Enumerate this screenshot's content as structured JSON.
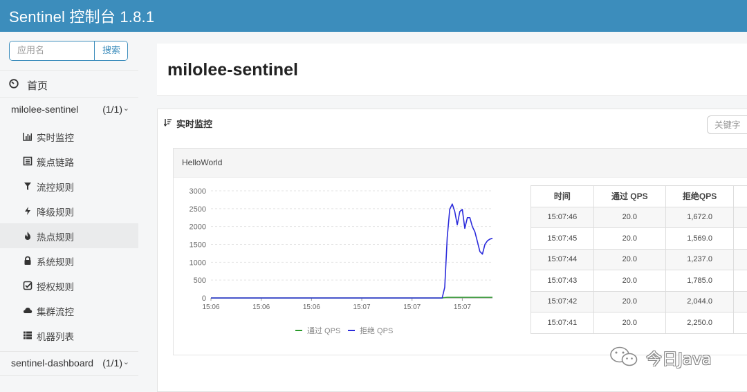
{
  "header": {
    "title": "Sentinel 控制台 1.8.1"
  },
  "sidebar": {
    "search": {
      "placeholder": "应用名",
      "button_label": "搜索"
    },
    "home_label": "首页",
    "apps": [
      {
        "name": "milolee-sentinel",
        "count": "(1/1)"
      },
      {
        "name": "sentinel-dashboard",
        "count": "(1/1)"
      }
    ],
    "items": [
      {
        "label": "实时监控",
        "icon": "bar-chart-icon"
      },
      {
        "label": "簇点链路",
        "icon": "list-icon"
      },
      {
        "label": "流控规则",
        "icon": "filter-icon"
      },
      {
        "label": "降级规则",
        "icon": "bolt-icon"
      },
      {
        "label": "热点规则",
        "icon": "fire-icon"
      },
      {
        "label": "系统规则",
        "icon": "lock-icon"
      },
      {
        "label": "授权规则",
        "icon": "check-square-icon"
      },
      {
        "label": "集群流控",
        "icon": "cloud-icon"
      },
      {
        "label": "机器列表",
        "icon": "th-list-icon"
      }
    ]
  },
  "main": {
    "page_title": "milolee-sentinel",
    "panel": {
      "title": "实时监控",
      "keyword_placeholder": "关键字"
    },
    "resource": {
      "name": "HelloWorld",
      "table": {
        "headers": [
          "时间",
          "通过 QPS",
          "拒绝QPS",
          ""
        ],
        "rows": [
          [
            "15:07:46",
            "20.0",
            "1,672.0"
          ],
          [
            "15:07:45",
            "20.0",
            "1,569.0"
          ],
          [
            "15:07:44",
            "20.0",
            "1,237.0"
          ],
          [
            "15:07:43",
            "20.0",
            "1,785.0"
          ],
          [
            "15:07:42",
            "20.0",
            "2,044.0"
          ],
          [
            "15:07:41",
            "20.0",
            "2,250.0"
          ]
        ]
      }
    }
  },
  "chart_data": {
    "type": "line",
    "x_ticks": [
      "15:06",
      "15:06",
      "15:06",
      "15:07",
      "15:07",
      "15:07"
    ],
    "y_ticks": [
      "3000",
      "2500",
      "2000",
      "1500",
      "1000",
      "500",
      "0"
    ],
    "ylim": [
      0,
      3000
    ],
    "xlim": [
      0,
      5.6
    ],
    "grid": true,
    "legend_position": "bottom",
    "colors": {
      "pass": "#2a9a2a",
      "block": "#2b2bdb"
    },
    "series": [
      {
        "name": "通过 QPS",
        "x": [
          0,
          4.6,
          4.7,
          5.6
        ],
        "y": [
          0,
          0,
          20,
          20
        ]
      },
      {
        "name": "拒绝 QPS",
        "x": [
          0,
          4.6,
          4.65,
          4.7,
          4.75,
          4.8,
          4.85,
          4.9,
          4.95,
          5.0,
          5.05,
          5.1,
          5.15,
          5.2,
          5.25,
          5.3,
          5.35,
          5.4,
          5.45,
          5.5,
          5.55,
          5.6
        ],
        "y": [
          0,
          0,
          300,
          1700,
          2480,
          2630,
          2420,
          2050,
          2420,
          2480,
          1950,
          2250,
          2250,
          2000,
          1850,
          1580,
          1300,
          1230,
          1500,
          1600,
          1650,
          1670
        ]
      }
    ]
  },
  "watermark": {
    "text": "今日Java"
  }
}
